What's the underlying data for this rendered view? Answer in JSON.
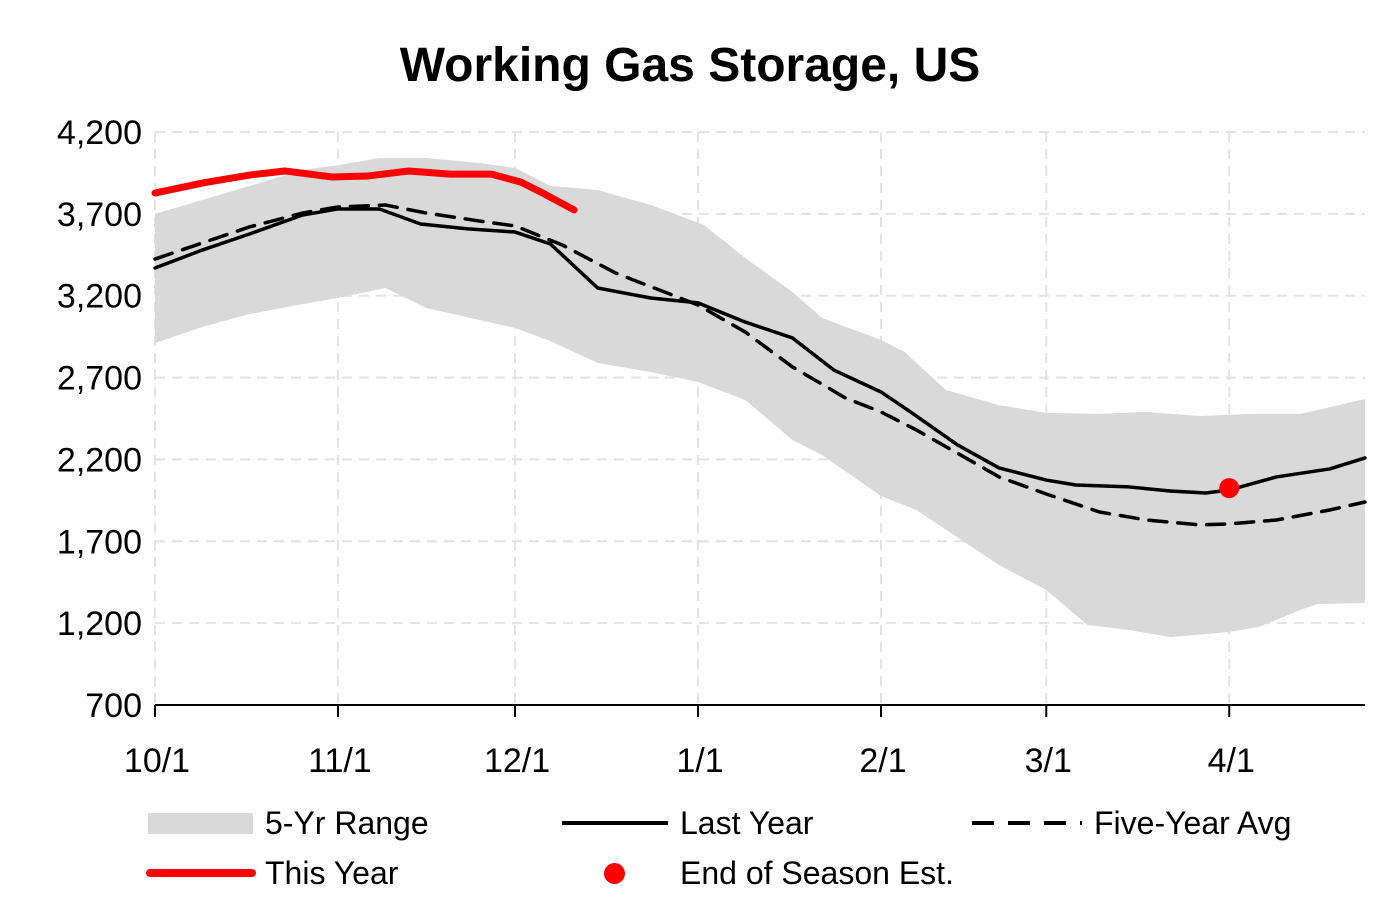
{
  "chart_data": {
    "type": "line",
    "title": "Working Gas Storage, US",
    "xlabel": "",
    "ylabel": "",
    "ylim": [
      700,
      4200
    ],
    "yticks": [
      "4,200",
      "3,700",
      "3,200",
      "2,700",
      "2,200",
      "1,700",
      "1,200",
      "700"
    ],
    "ytick_values": [
      4200,
      3700,
      3200,
      2700,
      2200,
      1700,
      1200,
      700
    ],
    "xlim": [
      "10/01",
      "04/24"
    ],
    "xticks": [
      "10/1",
      "11/1",
      "12/1",
      "1/1",
      "2/1",
      "3/1",
      "4/1"
    ],
    "grid": true,
    "legend_placement": "bottom",
    "colors": {
      "range": "#d9d9d9",
      "last_year": "#000000",
      "five_year_avg": "#000000",
      "this_year": "#ff0000",
      "estimate": "#ff0000"
    },
    "range": {
      "name": "5-Yr Range",
      "upper": [
        [
          "10/01",
          3699
        ],
        [
          "10/09",
          3785
        ],
        [
          "10/17",
          3870
        ],
        [
          "10/26",
          3968
        ],
        [
          "11/01",
          3998
        ],
        [
          "11/08",
          4041
        ],
        [
          "11/16",
          4041
        ],
        [
          "11/25",
          4011
        ],
        [
          "12/01",
          3980
        ],
        [
          "12/07",
          3870
        ],
        [
          "12/15",
          3846
        ],
        [
          "12/24",
          3754
        ],
        [
          "01/02",
          3632
        ],
        [
          "01/09",
          3430
        ],
        [
          "01/17",
          3223
        ],
        [
          "01/22",
          3064
        ],
        [
          "02/01",
          2930
        ],
        [
          "02/05",
          2856
        ],
        [
          "02/12",
          2624
        ],
        [
          "02/21",
          2532
        ],
        [
          "03/01",
          2484
        ],
        [
          "03/10",
          2478
        ],
        [
          "03/18",
          2490
        ],
        [
          "03/27",
          2465
        ],
        [
          "04/05",
          2478
        ],
        [
          "04/13",
          2478
        ],
        [
          "04/16",
          2502
        ],
        [
          "04/24",
          2569
        ]
      ],
      "lower": [
        [
          "10/01",
          2911
        ],
        [
          "10/09",
          3009
        ],
        [
          "10/17",
          3088
        ],
        [
          "10/26",
          3149
        ],
        [
          "11/01",
          3186
        ],
        [
          "11/09",
          3247
        ],
        [
          "11/16",
          3125
        ],
        [
          "11/25",
          3052
        ],
        [
          "12/01",
          3003
        ],
        [
          "12/07",
          2923
        ],
        [
          "12/15",
          2789
        ],
        [
          "12/24",
          2734
        ],
        [
          "01/01",
          2673
        ],
        [
          "01/09",
          2563
        ],
        [
          "01/17",
          2319
        ],
        [
          "01/22",
          2227
        ],
        [
          "02/01",
          1977
        ],
        [
          "02/07",
          1891
        ],
        [
          "02/21",
          1555
        ],
        [
          "03/01",
          1403
        ],
        [
          "03/08",
          1189
        ],
        [
          "03/15",
          1158
        ],
        [
          "03/22",
          1115
        ],
        [
          "04/01",
          1146
        ],
        [
          "04/06",
          1177
        ],
        [
          "04/13",
          1280
        ],
        [
          "04/16",
          1317
        ],
        [
          "04/24",
          1323
        ]
      ]
    },
    "series": [
      {
        "name": "Last Year",
        "style": "solid",
        "points": [
          [
            "10/01",
            3369
          ],
          [
            "10/09",
            3479
          ],
          [
            "10/17",
            3577
          ],
          [
            "10/26",
            3693
          ],
          [
            "11/01",
            3730
          ],
          [
            "11/08",
            3730
          ],
          [
            "11/15",
            3638
          ],
          [
            "11/23",
            3608
          ],
          [
            "12/01",
            3589
          ],
          [
            "12/07",
            3516
          ],
          [
            "12/15",
            3247
          ],
          [
            "12/24",
            3186
          ],
          [
            "01/01",
            3156
          ],
          [
            "01/09",
            3039
          ],
          [
            "01/17",
            2942
          ],
          [
            "01/24",
            2746
          ],
          [
            "02/01",
            2612
          ],
          [
            "02/06",
            2490
          ],
          [
            "02/14",
            2288
          ],
          [
            "02/21",
            2148
          ],
          [
            "03/01",
            2074
          ],
          [
            "03/06",
            2044
          ],
          [
            "03/15",
            2032
          ],
          [
            "03/22",
            2007
          ],
          [
            "03/28",
            1995
          ],
          [
            "04/01",
            2013
          ],
          [
            "04/09",
            2093
          ],
          [
            "04/18",
            2142
          ],
          [
            "04/24",
            2209
          ]
        ]
      },
      {
        "name": "Five-Year Avg",
        "style": "dashed",
        "points": [
          [
            "10/01",
            3424
          ],
          [
            "10/09",
            3522
          ],
          [
            "10/17",
            3620
          ],
          [
            "10/26",
            3705
          ],
          [
            "11/01",
            3742
          ],
          [
            "11/09",
            3754
          ],
          [
            "11/16",
            3705
          ],
          [
            "11/25",
            3656
          ],
          [
            "12/01",
            3626
          ],
          [
            "12/09",
            3510
          ],
          [
            "12/18",
            3339
          ],
          [
            "01/01",
            3143
          ],
          [
            "01/09",
            2978
          ],
          [
            "01/17",
            2765
          ],
          [
            "01/26",
            2575
          ],
          [
            "02/01",
            2490
          ],
          [
            "02/07",
            2380
          ],
          [
            "02/16",
            2196
          ],
          [
            "02/21",
            2093
          ],
          [
            "03/01",
            1989
          ],
          [
            "03/10",
            1879
          ],
          [
            "03/18",
            1830
          ],
          [
            "03/27",
            1800
          ],
          [
            "04/01",
            1806
          ],
          [
            "04/09",
            1830
          ],
          [
            "04/18",
            1891
          ],
          [
            "04/24",
            1940
          ]
        ]
      },
      {
        "name": "This Year",
        "style": "solid-thick",
        "points": [
          [
            "10/01",
            3827
          ],
          [
            "10/09",
            3888
          ],
          [
            "10/17",
            3937
          ],
          [
            "10/23",
            3962
          ],
          [
            "10/31",
            3925
          ],
          [
            "11/06",
            3931
          ],
          [
            "11/13",
            3962
          ],
          [
            "11/20",
            3943
          ],
          [
            "11/27",
            3943
          ],
          [
            "12/02",
            3894
          ],
          [
            "12/06",
            3821
          ],
          [
            "12/11",
            3724
          ]
        ]
      }
    ],
    "estimate": {
      "name": "End of Season Est.",
      "x": "04/01",
      "y": 2025
    },
    "legend": [
      "5-Yr Range",
      "Last Year",
      "Five-Year Avg",
      "This Year",
      "End of Season Est."
    ]
  }
}
